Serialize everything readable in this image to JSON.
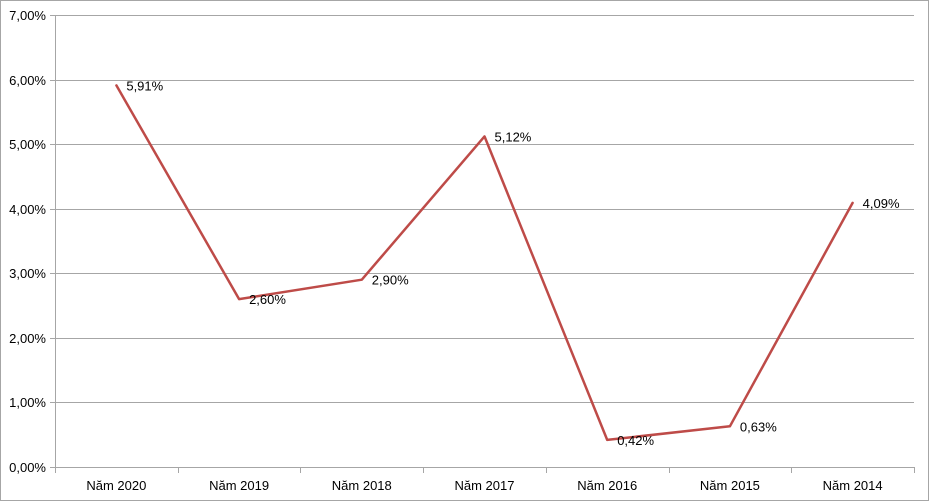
{
  "chart_data": {
    "type": "line",
    "title": "",
    "xlabel": "",
    "ylabel": "",
    "categories": [
      "Năm 2020",
      "Năm 2019",
      "Năm 2018",
      "Năm 2017",
      "Năm 2016",
      "Năm 2015",
      "Năm 2014"
    ],
    "series": [
      {
        "values": [
          5.91,
          2.6,
          2.9,
          5.12,
          0.42,
          0.63,
          4.09
        ],
        "labels": [
          "5,91%",
          "2,60%",
          "2,90%",
          "5,12%",
          "0,42%",
          "0,63%",
          "4,09%"
        ],
        "color": "#be4b48"
      }
    ],
    "ylim": [
      0,
      7
    ],
    "yticks": [
      0,
      1,
      2,
      3,
      4,
      5,
      6,
      7
    ],
    "ytick_labels": [
      "0,00%",
      "1,00%",
      "2,00%",
      "3,00%",
      "4,00%",
      "5,00%",
      "6,00%",
      "7,00%"
    ],
    "grid": true,
    "legend": "none"
  }
}
